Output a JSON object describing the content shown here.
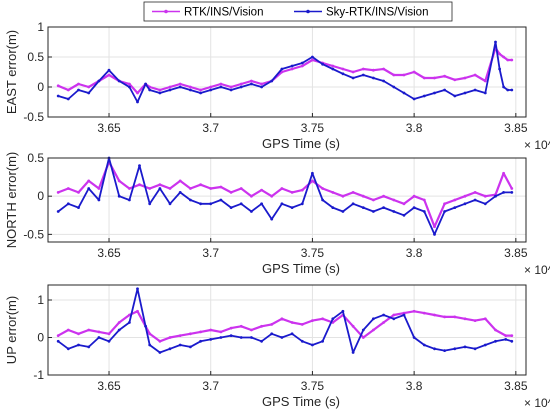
{
  "legend": [
    {
      "label": "RTK/INS/Vision",
      "color": "#cc33ee"
    },
    {
      "label": "Sky-RTK/INS/Vision",
      "color": "#1a1acc"
    }
  ],
  "chart_data": [
    {
      "type": "line",
      "xlabel": "GPS Time (s)",
      "ylabel": "EAST error(m)",
      "xlim": [
        36200,
        38550
      ],
      "ylim": [
        -0.5,
        1
      ],
      "xticks": [
        36500,
        37000,
        37500,
        38000,
        38500
      ],
      "xtick_labels": [
        "3.65",
        "3.7",
        "3.75",
        "3.8",
        "3.85"
      ],
      "yticks": [
        -0.5,
        0,
        0.5,
        1
      ],
      "ytick_labels": [
        "-0.5",
        "0",
        "0.5",
        "1"
      ],
      "x_exponent": "× 10^4",
      "series": [
        {
          "name": "RTK/INS/Vision",
          "color": "#cc33ee",
          "x": [
            36250,
            36300,
            36350,
            36400,
            36450,
            36500,
            36550,
            36600,
            36640,
            36680,
            36700,
            36750,
            36800,
            36850,
            36900,
            36950,
            37000,
            37050,
            37100,
            37150,
            37200,
            37250,
            37300,
            37350,
            37400,
            37450,
            37500,
            37550,
            37600,
            37650,
            37700,
            37750,
            37800,
            37850,
            37900,
            37950,
            38000,
            38050,
            38100,
            38150,
            38200,
            38250,
            38300,
            38350,
            38400,
            38420,
            38440,
            38460,
            38480
          ],
          "y": [
            0.02,
            -0.05,
            0.05,
            0.0,
            0.1,
            0.2,
            0.1,
            0.05,
            -0.1,
            0.05,
            0.0,
            -0.05,
            0.0,
            0.05,
            0.0,
            -0.05,
            0.0,
            0.05,
            0.0,
            0.05,
            0.1,
            0.05,
            0.1,
            0.25,
            0.3,
            0.35,
            0.45,
            0.4,
            0.35,
            0.3,
            0.25,
            0.3,
            0.28,
            0.3,
            0.2,
            0.2,
            0.25,
            0.15,
            0.15,
            0.18,
            0.12,
            0.15,
            0.2,
            0.1,
            0.65,
            0.55,
            0.5,
            0.45,
            0.45
          ]
        },
        {
          "name": "Sky-RTK/INS/Vision",
          "color": "#1a1acc",
          "x": [
            36250,
            36300,
            36350,
            36400,
            36450,
            36500,
            36550,
            36600,
            36640,
            36680,
            36700,
            36750,
            36800,
            36850,
            36900,
            36950,
            37000,
            37050,
            37100,
            37150,
            37200,
            37250,
            37300,
            37350,
            37400,
            37450,
            37500,
            37550,
            37600,
            37650,
            37700,
            37750,
            37800,
            37850,
            37900,
            37950,
            38000,
            38050,
            38100,
            38150,
            38200,
            38250,
            38300,
            38350,
            38400,
            38420,
            38440,
            38460,
            38480
          ],
          "y": [
            -0.15,
            -0.2,
            -0.05,
            -0.1,
            0.1,
            0.28,
            0.1,
            0.0,
            -0.25,
            0.05,
            -0.05,
            -0.1,
            -0.05,
            0.0,
            -0.05,
            -0.1,
            -0.05,
            0.0,
            -0.05,
            0.0,
            0.05,
            0.0,
            0.1,
            0.3,
            0.35,
            0.4,
            0.5,
            0.38,
            0.3,
            0.22,
            0.15,
            0.2,
            0.15,
            0.1,
            0.0,
            -0.1,
            -0.2,
            -0.15,
            -0.1,
            -0.05,
            -0.15,
            -0.1,
            -0.05,
            -0.1,
            0.75,
            0.3,
            0.0,
            -0.05,
            -0.05
          ]
        }
      ]
    },
    {
      "type": "line",
      "xlabel": "GPS Time (s)",
      "ylabel": "NORTH error(m)",
      "xlim": [
        36200,
        38550
      ],
      "ylim": [
        -0.6,
        0.5
      ],
      "xticks": [
        36500,
        37000,
        37500,
        38000,
        38500
      ],
      "xtick_labels": [
        "3.65",
        "3.7",
        "3.75",
        "3.8",
        "3.85"
      ],
      "yticks": [
        -0.5,
        0,
        0.5
      ],
      "ytick_labels": [
        "-0.5",
        "0",
        "0.5"
      ],
      "x_exponent": "× 10^4",
      "series": [
        {
          "name": "RTK/INS/Vision",
          "color": "#cc33ee",
          "x": [
            36250,
            36300,
            36350,
            36400,
            36450,
            36500,
            36550,
            36600,
            36650,
            36700,
            36750,
            36800,
            36850,
            36900,
            36950,
            37000,
            37050,
            37100,
            37150,
            37200,
            37250,
            37300,
            37350,
            37400,
            37450,
            37500,
            37550,
            37600,
            37650,
            37700,
            37750,
            37800,
            37850,
            37900,
            37950,
            38000,
            38050,
            38100,
            38150,
            38200,
            38250,
            38300,
            38350,
            38400,
            38440,
            38480
          ],
          "y": [
            0.05,
            0.1,
            0.05,
            0.2,
            0.1,
            0.45,
            0.2,
            0.1,
            0.15,
            0.1,
            0.15,
            0.1,
            0.2,
            0.1,
            0.15,
            0.1,
            0.12,
            0.05,
            0.1,
            0.0,
            0.08,
            0.0,
            0.1,
            0.05,
            0.08,
            0.2,
            0.1,
            0.05,
            0.0,
            0.05,
            0.0,
            -0.05,
            0.0,
            -0.05,
            -0.1,
            0.0,
            -0.05,
            -0.4,
            -0.1,
            -0.05,
            0.0,
            0.05,
            0.0,
            0.02,
            0.3,
            0.1
          ]
        },
        {
          "name": "Sky-RTK/INS/Vision",
          "color": "#1a1acc",
          "x": [
            36250,
            36300,
            36350,
            36400,
            36450,
            36500,
            36550,
            36600,
            36650,
            36700,
            36750,
            36800,
            36850,
            36900,
            36950,
            37000,
            37050,
            37100,
            37150,
            37200,
            37250,
            37300,
            37350,
            37400,
            37450,
            37500,
            37550,
            37600,
            37650,
            37700,
            37750,
            37800,
            37850,
            37900,
            37950,
            38000,
            38050,
            38100,
            38150,
            38200,
            38250,
            38300,
            38350,
            38400,
            38440,
            38480
          ],
          "y": [
            -0.2,
            -0.1,
            -0.15,
            0.1,
            -0.05,
            0.5,
            0.0,
            -0.05,
            0.4,
            -0.1,
            0.1,
            -0.1,
            0.05,
            -0.05,
            -0.1,
            -0.1,
            -0.05,
            -0.15,
            -0.1,
            -0.2,
            -0.1,
            -0.3,
            -0.1,
            -0.15,
            -0.1,
            0.3,
            -0.05,
            -0.15,
            -0.2,
            -0.1,
            -0.15,
            -0.2,
            -0.15,
            -0.2,
            -0.25,
            -0.15,
            -0.2,
            -0.5,
            -0.2,
            -0.15,
            -0.1,
            -0.05,
            -0.1,
            0.0,
            0.05,
            0.05
          ]
        }
      ]
    },
    {
      "type": "line",
      "xlabel": "GPS Time (s)",
      "ylabel": "UP error(m)",
      "xlim": [
        36200,
        38550
      ],
      "ylim": [
        -1,
        1.4
      ],
      "xticks": [
        36500,
        37000,
        37500,
        38000,
        38500
      ],
      "xtick_labels": [
        "3.65",
        "3.7",
        "3.75",
        "3.8",
        "3.85"
      ],
      "yticks": [
        -1,
        0,
        1
      ],
      "ytick_labels": [
        "-1",
        "0",
        "1"
      ],
      "x_exponent": "× 10^4",
      "series": [
        {
          "name": "RTK/INS/Vision",
          "color": "#cc33ee",
          "x": [
            36250,
            36300,
            36350,
            36400,
            36450,
            36500,
            36550,
            36600,
            36640,
            36680,
            36700,
            36750,
            36800,
            36850,
            36900,
            36950,
            37000,
            37050,
            37100,
            37150,
            37200,
            37250,
            37300,
            37350,
            37400,
            37450,
            37500,
            37550,
            37600,
            37650,
            37700,
            37750,
            37800,
            37850,
            37900,
            37950,
            38000,
            38050,
            38100,
            38150,
            38200,
            38250,
            38300,
            38350,
            38400,
            38450,
            38480
          ],
          "y": [
            0.05,
            0.2,
            0.1,
            0.2,
            0.15,
            0.1,
            0.4,
            0.6,
            0.7,
            0.3,
            0.1,
            -0.1,
            0.0,
            0.05,
            0.1,
            0.15,
            0.2,
            0.15,
            0.25,
            0.3,
            0.2,
            0.3,
            0.35,
            0.5,
            0.4,
            0.35,
            0.45,
            0.5,
            0.4,
            0.6,
            0.3,
            0.0,
            0.2,
            0.4,
            0.6,
            0.65,
            0.7,
            0.65,
            0.6,
            0.55,
            0.55,
            0.5,
            0.45,
            0.5,
            0.2,
            0.05,
            0.05
          ]
        },
        {
          "name": "Sky-RTK/INS/Vision",
          "color": "#1a1acc",
          "x": [
            36250,
            36300,
            36350,
            36400,
            36450,
            36500,
            36550,
            36600,
            36640,
            36680,
            36700,
            36750,
            36800,
            36850,
            36900,
            36950,
            37000,
            37050,
            37100,
            37150,
            37200,
            37250,
            37300,
            37350,
            37400,
            37450,
            37500,
            37550,
            37600,
            37650,
            37700,
            37750,
            37800,
            37850,
            37900,
            37950,
            38000,
            38050,
            38100,
            38150,
            38200,
            38250,
            38300,
            38350,
            38400,
            38450,
            38480
          ],
          "y": [
            -0.1,
            -0.3,
            -0.2,
            -0.25,
            0.0,
            -0.1,
            0.2,
            0.4,
            1.3,
            0.3,
            -0.2,
            -0.4,
            -0.3,
            -0.2,
            -0.25,
            -0.1,
            -0.05,
            0.0,
            0.05,
            0.0,
            0.0,
            -0.1,
            0.1,
            0.0,
            0.1,
            -0.1,
            -0.2,
            -0.1,
            0.5,
            0.7,
            -0.4,
            0.2,
            0.5,
            0.6,
            0.5,
            0.6,
            0.0,
            -0.2,
            -0.3,
            -0.35,
            -0.3,
            -0.25,
            -0.3,
            -0.2,
            -0.1,
            -0.05,
            -0.1
          ]
        }
      ]
    }
  ]
}
